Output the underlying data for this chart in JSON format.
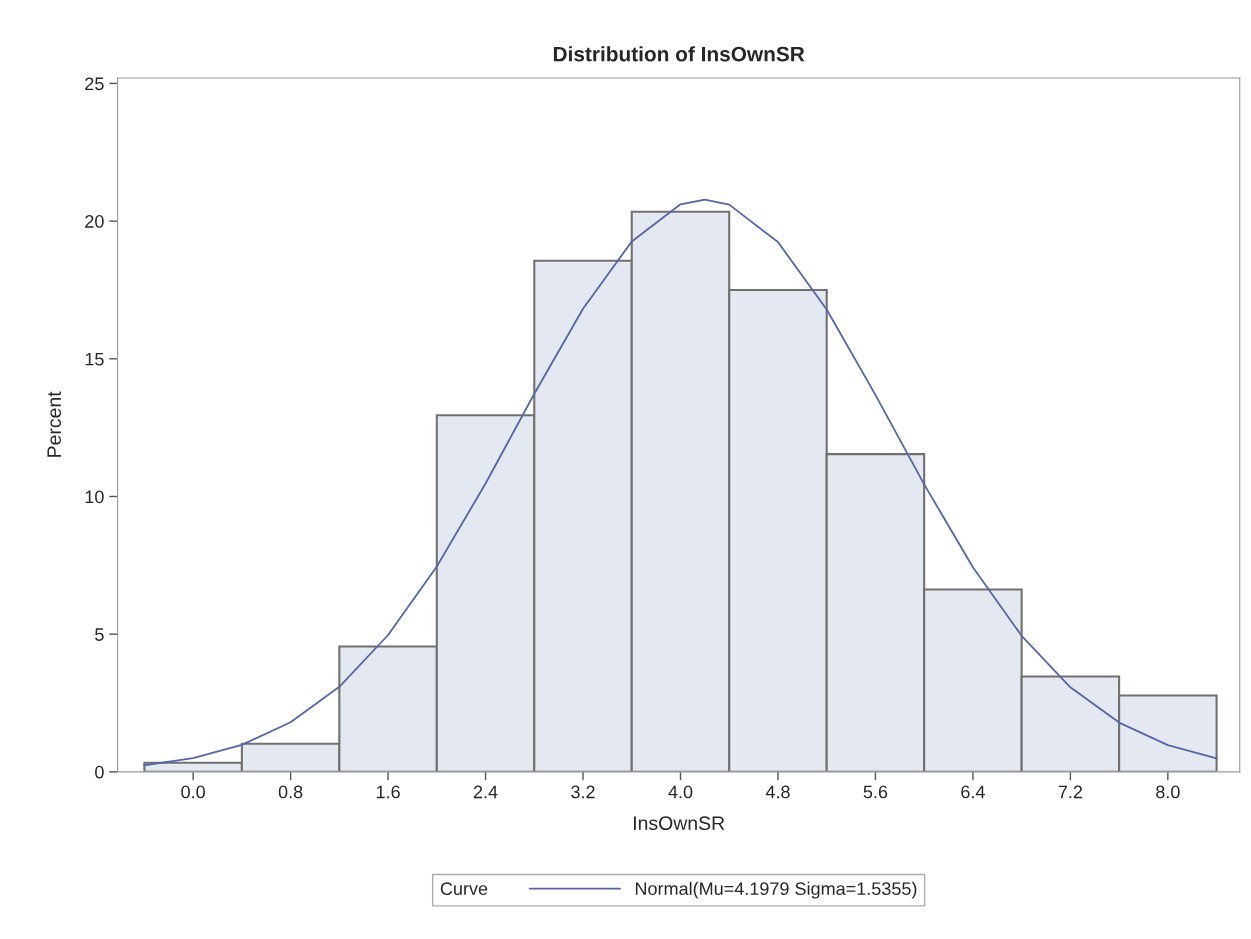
{
  "chart_data": {
    "type": "histogram",
    "title": "Distribution of InsOwnSR",
    "xlabel": "InsOwnSR",
    "ylabel": "Percent",
    "legend_title": "Curve",
    "bins": [
      -0.4,
      0.4,
      1.2,
      2.0,
      2.8,
      3.6,
      4.4,
      5.2,
      6.0,
      6.8,
      7.6,
      8.4
    ],
    "values": [
      0.33,
      1.02,
      4.55,
      12.95,
      18.56,
      20.34,
      17.5,
      11.54,
      6.62,
      3.46,
      2.77
    ],
    "color": "#e4e8f1",
    "series": [
      {
        "type": "line",
        "name": "Normal(Mu=4.1979 Sigma=1.5355)",
        "color": "#5566a8",
        "x": [
          -0.4,
          0.0,
          0.4,
          0.8,
          1.2,
          1.6,
          2.0,
          2.4,
          2.8,
          3.2,
          3.6,
          4.0,
          4.2,
          4.4,
          4.8,
          5.2,
          5.6,
          6.0,
          6.4,
          6.8,
          7.2,
          7.6,
          8.0,
          8.4
        ],
        "values": [
          0.24,
          0.5,
          0.98,
          1.8,
          3.09,
          4.97,
          7.46,
          10.47,
          13.73,
          16.82,
          19.26,
          20.61,
          20.78,
          20.6,
          19.24,
          16.79,
          13.69,
          10.44,
          7.43,
          4.94,
          3.07,
          1.79,
          0.97,
          0.49
        ]
      }
    ],
    "xlim": [
      -0.62,
      8.59
    ],
    "ylim": [
      0,
      25.2
    ],
    "xticks": [
      {
        "value": 0,
        "label": "0.0"
      },
      {
        "value": 0.8,
        "label": "0.8"
      },
      {
        "value": 1.6,
        "label": "1.6"
      },
      {
        "value": 2.4,
        "label": "2.4"
      },
      {
        "value": 3.2,
        "label": "3.2"
      },
      {
        "value": 4.0,
        "label": "4.0"
      },
      {
        "value": 4.8,
        "label": "4.8"
      },
      {
        "value": 5.6,
        "label": "5.6"
      },
      {
        "value": 6.4,
        "label": "6.4"
      },
      {
        "value": 7.2,
        "label": "7.2"
      },
      {
        "value": 8.0,
        "label": "8.0"
      }
    ],
    "yticks": [
      0,
      5,
      10,
      15,
      20,
      25
    ],
    "grid": false,
    "legend": "bottom"
  }
}
